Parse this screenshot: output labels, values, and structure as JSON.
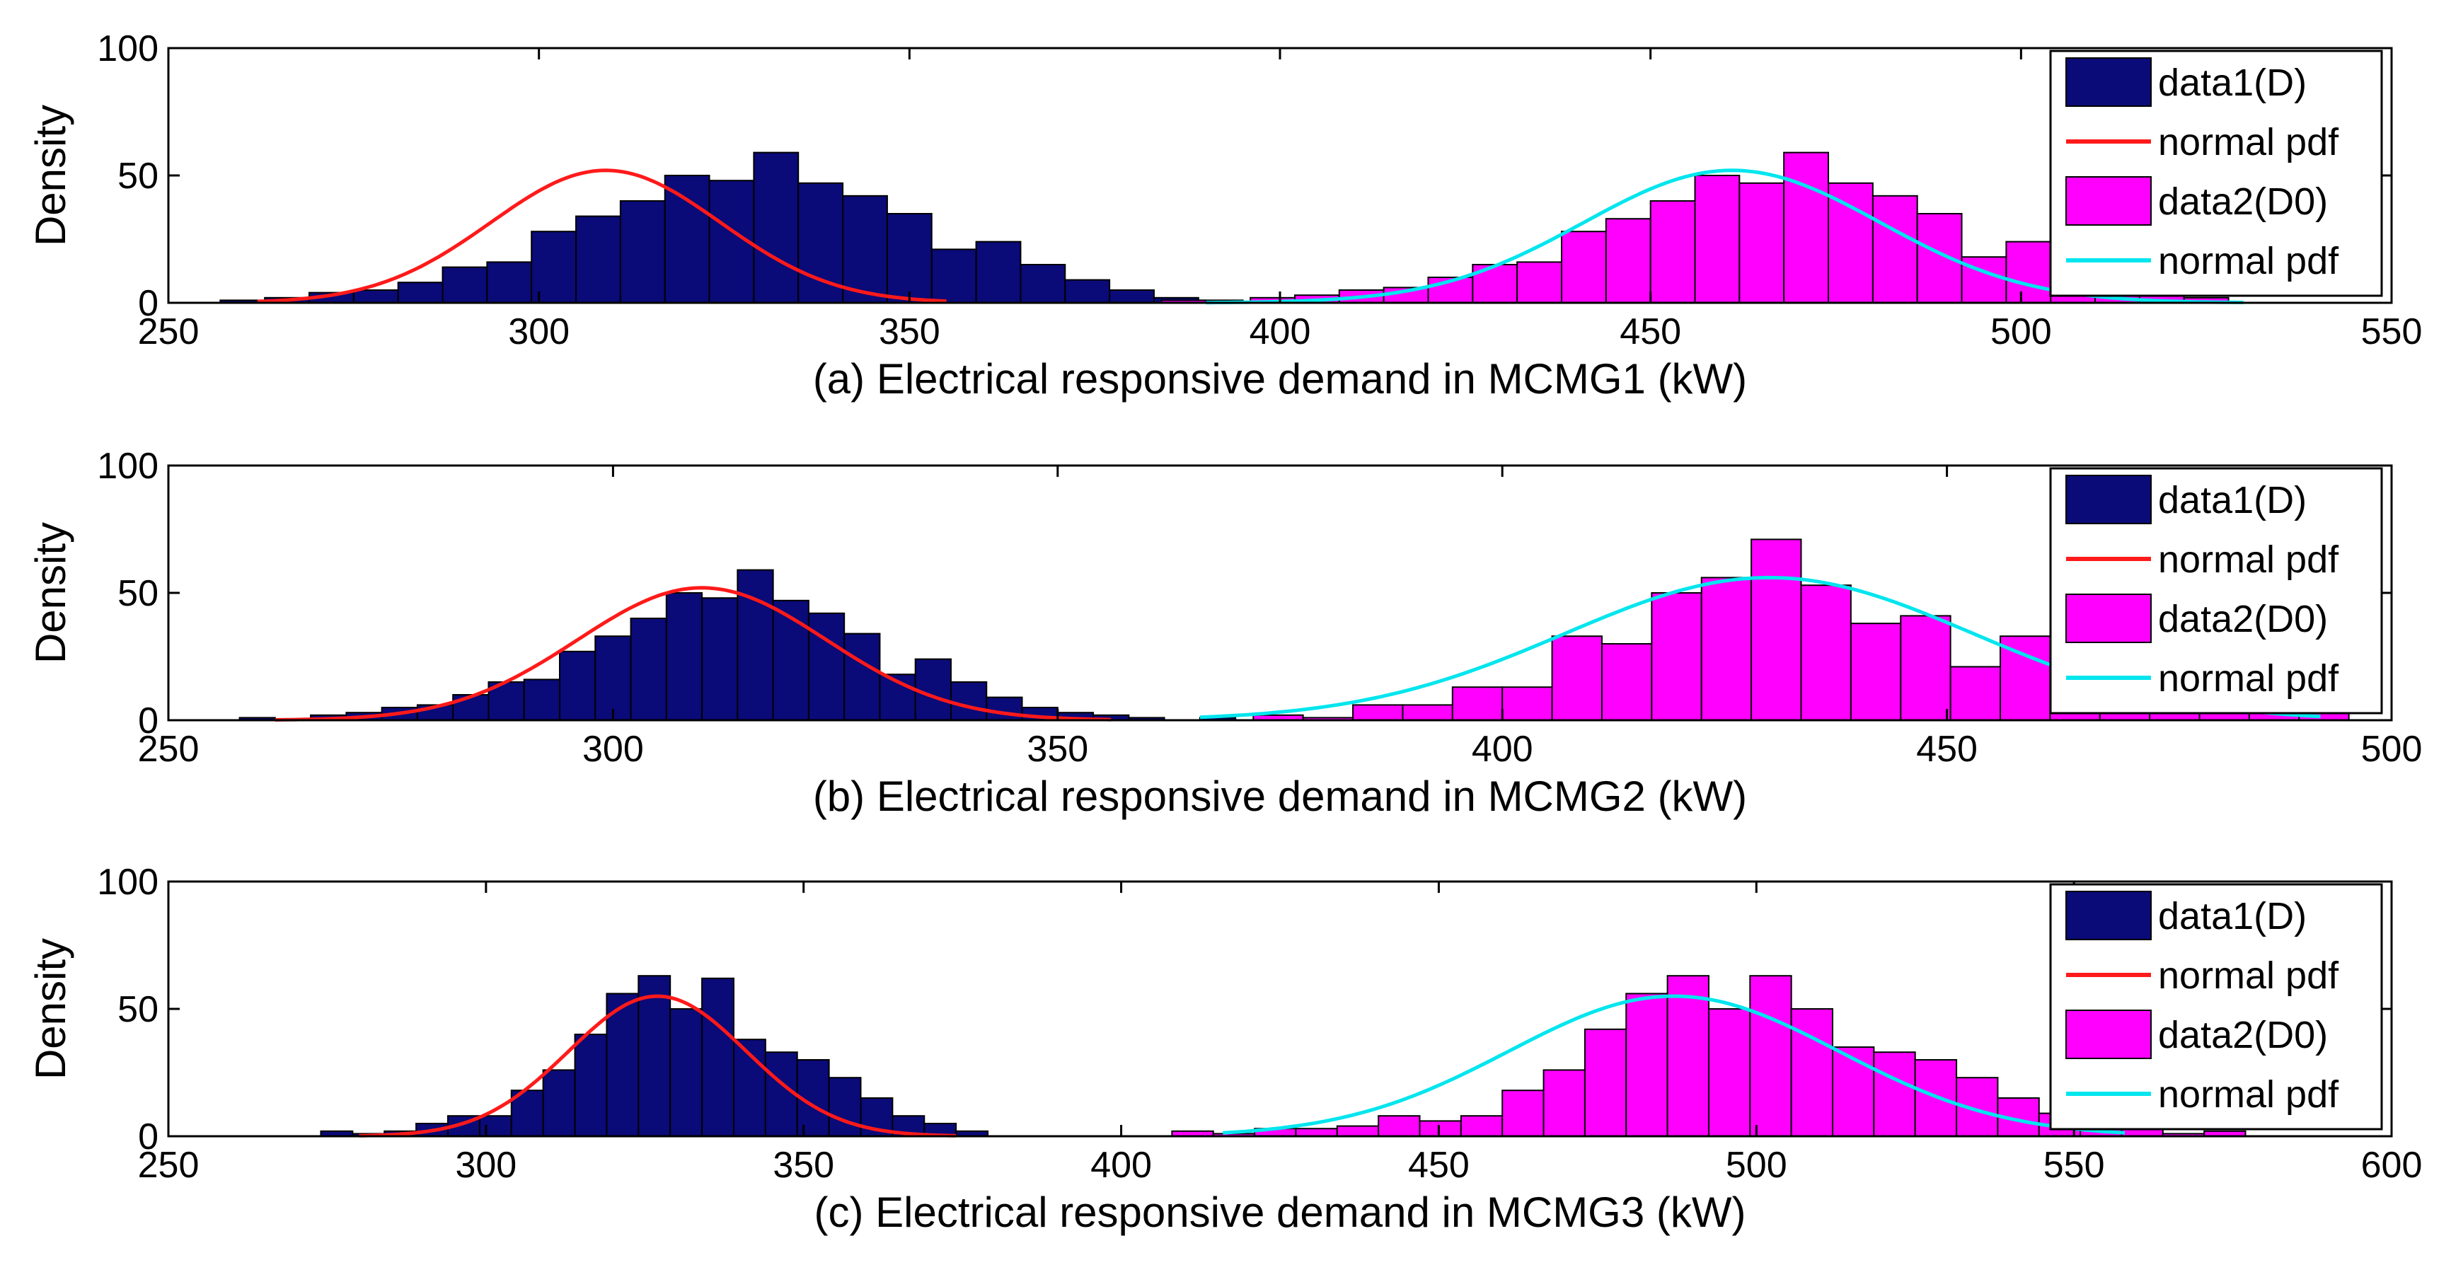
{
  "chart_data": [
    {
      "type": "bar",
      "xlabel": "(a) Electrical responsive demand in MCMG1 (kW)",
      "ylabel": "Density",
      "xlim": [
        250,
        550
      ],
      "ylim": [
        0,
        100
      ],
      "xticks": [
        250,
        300,
        350,
        400,
        450,
        500,
        550
      ],
      "yticks": [
        0,
        50,
        100
      ],
      "grid": false,
      "legend": {
        "position": "top-right",
        "entries": [
          {
            "label": "data1(D)",
            "kind": "patch",
            "color": "#0a0a78"
          },
          {
            "label": "normal pdf",
            "kind": "line",
            "color": "#ff1a1a"
          },
          {
            "label": "data2(D0)",
            "kind": "patch",
            "color": "#ff00ff"
          },
          {
            "label": "normal pdf",
            "kind": "line",
            "color": "#00e5ee"
          }
        ]
      },
      "series": [
        {
          "name": "data1(D)",
          "kind": "histogram",
          "color": "#0a0a78",
          "bin_width": 6,
          "x_start": 257,
          "values": [
            1,
            2,
            4,
            5,
            8,
            14,
            16,
            28,
            34,
            40,
            50,
            48,
            59,
            47,
            42,
            35,
            21,
            24,
            15,
            9,
            5,
            2,
            1
          ]
        },
        {
          "name": "normal pdf",
          "kind": "line",
          "color": "#ff1a1a",
          "mean": 309,
          "peak": 52,
          "sd": 15.5,
          "x_range": [
            262,
            355
          ]
        },
        {
          "name": "data2(D0)",
          "kind": "histogram",
          "color": "#ff00ff",
          "bin_width": 6,
          "x_start": 384,
          "values": [
            1,
            0,
            2,
            3,
            5,
            6,
            10,
            15,
            16,
            28,
            33,
            40,
            50,
            47,
            59,
            47,
            42,
            35,
            18,
            24,
            15,
            7,
            4,
            2
          ]
        },
        {
          "name": "normal pdf",
          "kind": "line",
          "color": "#00e5ee",
          "mean": 461,
          "peak": 52,
          "sd": 20,
          "x_range": [
            390,
            530
          ]
        }
      ]
    },
    {
      "type": "bar",
      "xlabel": "(b) Electrical responsive demand in MCMG2 (kW)",
      "ylabel": "Density",
      "xlim": [
        250,
        500
      ],
      "ylim": [
        0,
        100
      ],
      "xticks": [
        250,
        300,
        350,
        400,
        450,
        500
      ],
      "yticks": [
        0,
        50,
        100
      ],
      "grid": false,
      "legend": {
        "position": "top-right",
        "entries": [
          {
            "label": "data1(D)",
            "kind": "patch",
            "color": "#0a0a78"
          },
          {
            "label": "normal pdf",
            "kind": "line",
            "color": "#ff1a1a"
          },
          {
            "label": "data2(D0)",
            "kind": "patch",
            "color": "#ff00ff"
          },
          {
            "label": "normal pdf",
            "kind": "line",
            "color": "#00e5ee"
          }
        ]
      },
      "series": [
        {
          "name": "data1(D)",
          "kind": "histogram",
          "color": "#0a0a78",
          "bin_width": 4,
          "x_start": 258,
          "values": [
            1,
            0,
            2,
            3,
            5,
            6,
            10,
            15,
            16,
            27,
            33,
            40,
            50,
            48,
            59,
            47,
            42,
            34,
            18,
            24,
            15,
            9,
            5,
            3,
            2,
            1,
            0,
            1
          ]
        },
        {
          "name": "normal pdf",
          "kind": "line",
          "color": "#ff1a1a",
          "mean": 310,
          "peak": 52,
          "sd": 14,
          "x_range": [
            262,
            356
          ]
        },
        {
          "name": "data2(D0)",
          "kind": "histogram",
          "color": "#ff00ff",
          "bin_width": 5.6,
          "x_start": 372,
          "values": [
            2,
            1,
            6,
            6,
            13,
            13,
            33,
            30,
            50,
            56,
            71,
            53,
            38,
            41,
            21,
            33,
            21,
            18,
            13,
            9,
            6,
            4
          ]
        },
        {
          "name": "normal pdf",
          "kind": "line",
          "color": "#00e5ee",
          "mean": 430,
          "peak": 56,
          "sd": 23,
          "x_range": [
            366,
            492
          ]
        }
      ]
    },
    {
      "type": "bar",
      "xlabel": "(c) Electrical responsive demand in MCMG3 (kW)",
      "ylabel": "Density",
      "xlim": [
        250,
        600
      ],
      "ylim": [
        0,
        100
      ],
      "xticks": [
        250,
        300,
        350,
        400,
        450,
        500,
        550,
        600
      ],
      "yticks": [
        0,
        50,
        100
      ],
      "grid": false,
      "legend": {
        "position": "top-right",
        "entries": [
          {
            "label": "data1(D)",
            "kind": "patch",
            "color": "#0a0a78"
          },
          {
            "label": "normal pdf",
            "kind": "line",
            "color": "#ff1a1a"
          },
          {
            "label": "data2(D0)",
            "kind": "patch",
            "color": "#ff00ff"
          },
          {
            "label": "normal pdf",
            "kind": "line",
            "color": "#00e5ee"
          }
        ]
      },
      "series": [
        {
          "name": "data1(D)",
          "kind": "histogram",
          "color": "#0a0a78",
          "bin_width": 5,
          "x_start": 274,
          "values": [
            2,
            1,
            2,
            5,
            8,
            8,
            18,
            26,
            40,
            56,
            63,
            50,
            62,
            38,
            33,
            30,
            23,
            15,
            8,
            5,
            2
          ]
        },
        {
          "name": "normal pdf",
          "kind": "line",
          "color": "#ff1a1a",
          "mean": 327,
          "peak": 55,
          "sd": 14,
          "x_range": [
            280,
            374
          ]
        },
        {
          "name": "data2(D0)",
          "kind": "histogram",
          "color": "#ff00ff",
          "bin_width": 6.5,
          "x_start": 408,
          "values": [
            2,
            1,
            3,
            3,
            4,
            8,
            6,
            8,
            18,
            26,
            42,
            56,
            63,
            50,
            63,
            50,
            35,
            33,
            30,
            23,
            15,
            9,
            5,
            3,
            1,
            2
          ]
        },
        {
          "name": "normal pdf",
          "kind": "line",
          "color": "#00e5ee",
          "mean": 487,
          "peak": 55,
          "sd": 26,
          "x_range": [
            416,
            558
          ]
        }
      ]
    }
  ]
}
